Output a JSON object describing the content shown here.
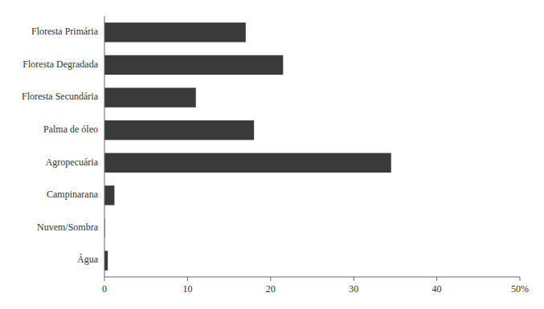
{
  "chart_data": {
    "type": "bar",
    "orientation": "horizontal",
    "categories": [
      "Floresta Primária",
      "Floresta Degradada",
      "Floresta Secundária",
      "Palma de óleo",
      "Agropecuária",
      "Campinarana",
      "Nuvem/Sombra",
      "Água"
    ],
    "values": [
      17.0,
      21.5,
      11.0,
      18.0,
      34.5,
      1.2,
      0.05,
      0.4
    ],
    "color": "#3a3a3a",
    "xlim": [
      0,
      50
    ],
    "xticks": [
      0,
      10,
      20,
      30,
      40,
      {
        "value": 50,
        "label": "50%"
      }
    ]
  }
}
